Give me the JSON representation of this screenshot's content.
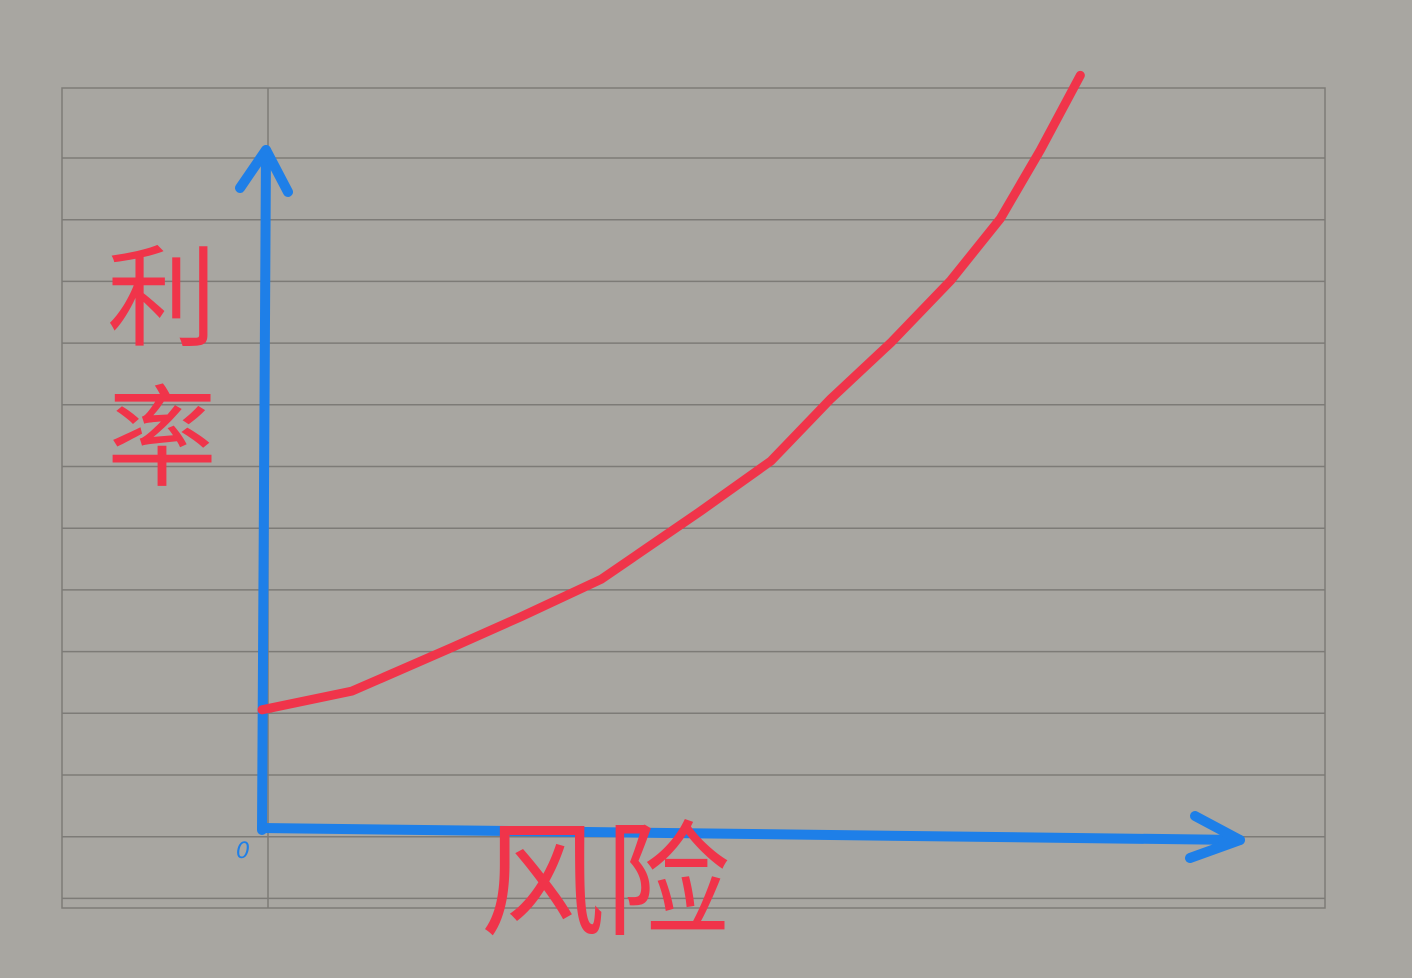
{
  "chart_data": {
    "type": "line",
    "x_label": "风险",
    "y_label": "利率",
    "origin_label": "0",
    "xlim": [
      0,
      9.8
    ],
    "ylim": [
      0,
      10.9
    ],
    "series": [
      {
        "name": null,
        "color": "#f0344a",
        "x": [
          0,
          0.9,
          1.9,
          2.6,
          3.4,
          4.4,
          5.1,
          5.7,
          6.3,
          6.9,
          7.4,
          7.8,
          8.2
        ],
        "values": [
          1.9,
          2.2,
          2.9,
          3.4,
          4.0,
          5.1,
          5.9,
          6.9,
          7.8,
          8.8,
          9.8,
          10.9,
          12.1
        ]
      }
    ],
    "axis_color": "#1e7fe8"
  }
}
